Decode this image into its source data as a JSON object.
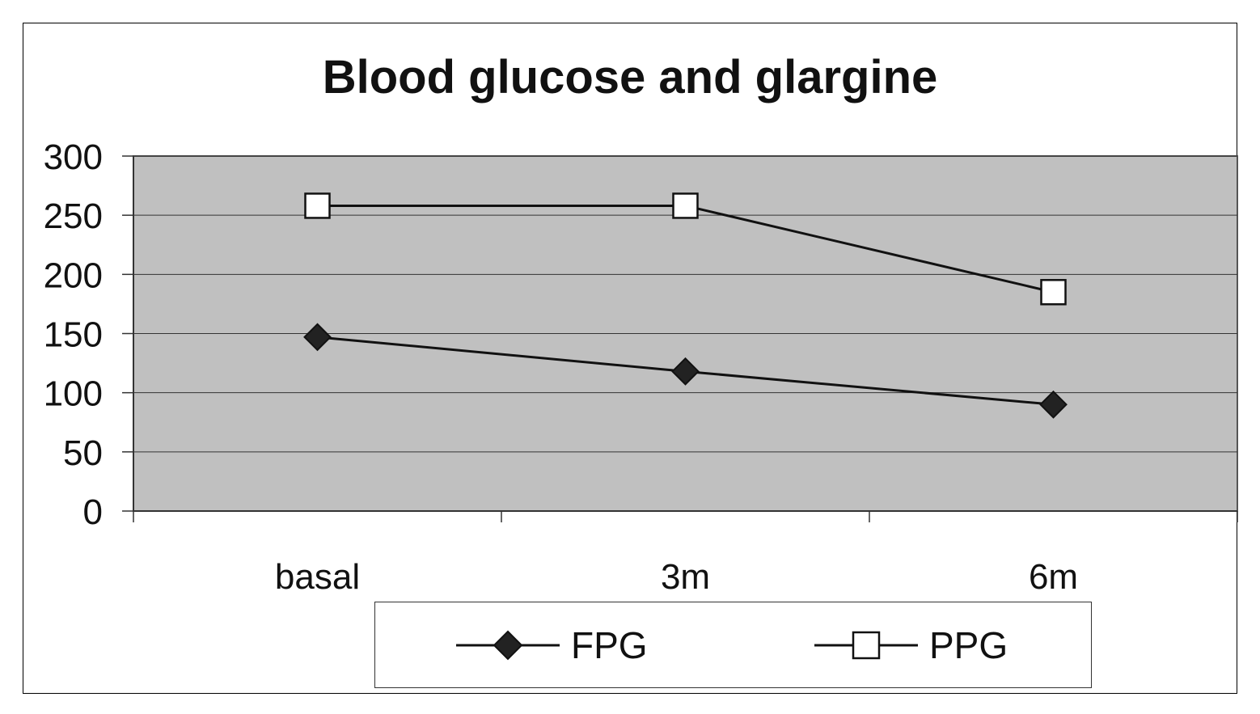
{
  "chart_data": {
    "type": "line",
    "title": "Blood glucose and glargine",
    "xlabel": "",
    "ylabel": "",
    "categories": [
      "basal",
      "3m",
      "6m"
    ],
    "ylim": [
      0,
      300
    ],
    "yticks": [
      0,
      50,
      100,
      150,
      200,
      250,
      300
    ],
    "grid": true,
    "legend_position": "bottom",
    "series": [
      {
        "name": "FPG",
        "values": [
          147,
          118,
          90
        ],
        "marker": "diamond-filled",
        "color": "#222222"
      },
      {
        "name": "PPG",
        "values": [
          258,
          258,
          185
        ],
        "marker": "square-open",
        "color": "#111111"
      }
    ],
    "colors": {
      "plot_background": "#c0c0c0",
      "line": "#111111"
    }
  }
}
